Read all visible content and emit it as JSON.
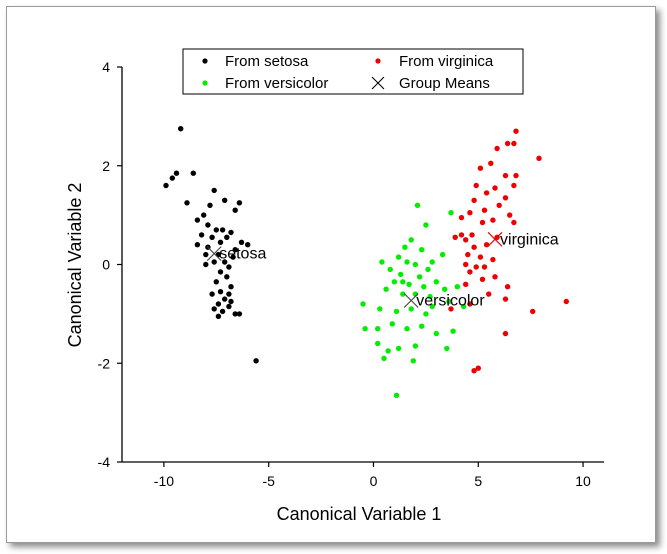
{
  "chart_data": {
    "type": "scatter",
    "title": "",
    "xlabel": "Canonical Variable 1",
    "ylabel": "Canonical Variable 2",
    "xlim": [
      -12,
      11
    ],
    "ylim": [
      -4,
      4
    ],
    "xticks": [
      -10,
      -5,
      0,
      5,
      10
    ],
    "yticks": [
      -4,
      -2,
      0,
      2,
      4
    ],
    "legend_position": "top",
    "series": [
      {
        "name": "From setosa",
        "color": "#000000",
        "marker": "dot",
        "points": [
          [
            -9.2,
            2.75
          ],
          [
            -9.4,
            1.85
          ],
          [
            -8.6,
            1.85
          ],
          [
            -9.9,
            1.6
          ],
          [
            -9.6,
            1.75
          ],
          [
            -8.9,
            1.25
          ],
          [
            -7.6,
            1.5
          ],
          [
            -7.8,
            1.2
          ],
          [
            -8.1,
            1.0
          ],
          [
            -7.1,
            1.3
          ],
          [
            -6.4,
            1.25
          ],
          [
            -6.6,
            1.1
          ],
          [
            -8.4,
            0.9
          ],
          [
            -7.9,
            0.8
          ],
          [
            -7.5,
            0.7
          ],
          [
            -7.2,
            0.7
          ],
          [
            -6.8,
            0.65
          ],
          [
            -8.2,
            0.6
          ],
          [
            -7.7,
            0.55
          ],
          [
            -7.3,
            0.45
          ],
          [
            -6.3,
            0.45
          ],
          [
            -6.0,
            0.4
          ],
          [
            -8.4,
            0.4
          ],
          [
            -7.9,
            0.35
          ],
          [
            -6.6,
            0.3
          ],
          [
            -7.4,
            0.2
          ],
          [
            -8.0,
            0.2
          ],
          [
            -7.6,
            0.05
          ],
          [
            -7.1,
            0.05
          ],
          [
            -6.9,
            -0.05
          ],
          [
            -7.3,
            -0.15
          ],
          [
            -7.0,
            -0.25
          ],
          [
            -7.5,
            -0.35
          ],
          [
            -6.8,
            -0.45
          ],
          [
            -7.3,
            -0.55
          ],
          [
            -6.9,
            -0.6
          ],
          [
            -7.1,
            -0.7
          ],
          [
            -6.8,
            -0.75
          ],
          [
            -7.4,
            -0.8
          ],
          [
            -7.6,
            -0.9
          ],
          [
            -6.9,
            -0.85
          ],
          [
            -7.2,
            -0.95
          ],
          [
            -6.6,
            -1.0
          ],
          [
            -7.4,
            -1.05
          ],
          [
            -6.4,
            -1.0
          ],
          [
            -5.6,
            -1.95
          ],
          [
            -7.7,
            -0.6
          ],
          [
            -6.7,
            0.15
          ],
          [
            -8.0,
            0.0
          ],
          [
            -7.0,
            0.55
          ]
        ]
      },
      {
        "name": "From versicolor",
        "color": "#00ee00",
        "marker": "dot",
        "points": [
          [
            2.1,
            1.2
          ],
          [
            3.7,
            1.05
          ],
          [
            2.5,
            0.8
          ],
          [
            1.8,
            0.5
          ],
          [
            1.5,
            0.35
          ],
          [
            2.3,
            0.3
          ],
          [
            0.4,
            0.05
          ],
          [
            1.2,
            0.15
          ],
          [
            1.6,
            0.05
          ],
          [
            2.0,
            0.0
          ],
          [
            2.8,
            0.05
          ],
          [
            3.3,
            0.2
          ],
          [
            0.8,
            -0.1
          ],
          [
            1.3,
            -0.2
          ],
          [
            2.6,
            -0.1
          ],
          [
            2.2,
            -0.25
          ],
          [
            1.0,
            -0.35
          ],
          [
            1.7,
            -0.4
          ],
          [
            2.4,
            -0.45
          ],
          [
            3.0,
            -0.35
          ],
          [
            0.6,
            -0.5
          ],
          [
            1.4,
            -0.6
          ],
          [
            2.0,
            -0.6
          ],
          [
            2.7,
            -0.65
          ],
          [
            3.4,
            -0.5
          ],
          [
            -0.5,
            -0.8
          ],
          [
            0.3,
            -0.9
          ],
          [
            1.1,
            -0.95
          ],
          [
            1.8,
            -0.9
          ],
          [
            2.5,
            -1.0
          ],
          [
            3.6,
            -0.75
          ],
          [
            4.3,
            -0.85
          ],
          [
            0.9,
            -1.2
          ],
          [
            1.6,
            -1.3
          ],
          [
            2.3,
            -1.25
          ],
          [
            0.2,
            -1.3
          ],
          [
            -0.4,
            -1.3
          ],
          [
            3.0,
            -1.4
          ],
          [
            3.8,
            -1.35
          ],
          [
            0.2,
            -1.6
          ],
          [
            0.7,
            -1.75
          ],
          [
            1.2,
            -1.7
          ],
          [
            2.0,
            -1.65
          ],
          [
            3.5,
            -1.7
          ],
          [
            0.5,
            -1.9
          ],
          [
            1.9,
            -1.95
          ],
          [
            1.1,
            -2.65
          ],
          [
            4.0,
            -0.45
          ],
          [
            2.8,
            -0.85
          ],
          [
            1.4,
            -0.35
          ]
        ]
      },
      {
        "name": "From virginica",
        "color": "#ee0000",
        "marker": "dot",
        "points": [
          [
            6.8,
            2.7
          ],
          [
            6.4,
            2.45
          ],
          [
            6.7,
            2.45
          ],
          [
            5.9,
            2.35
          ],
          [
            7.9,
            2.15
          ],
          [
            5.6,
            2.05
          ],
          [
            5.1,
            1.95
          ],
          [
            6.3,
            1.8
          ],
          [
            6.8,
            1.8
          ],
          [
            6.7,
            1.6
          ],
          [
            4.9,
            1.6
          ],
          [
            5.8,
            1.55
          ],
          [
            5.4,
            1.45
          ],
          [
            6.3,
            1.35
          ],
          [
            4.8,
            1.3
          ],
          [
            6.0,
            1.2
          ],
          [
            5.3,
            1.1
          ],
          [
            4.6,
            1.05
          ],
          [
            6.5,
            1.0
          ],
          [
            5.7,
            0.9
          ],
          [
            4.2,
            0.95
          ],
          [
            5.2,
            0.85
          ],
          [
            6.7,
            0.85
          ],
          [
            4.7,
            0.6
          ],
          [
            4.2,
            0.6
          ],
          [
            5.9,
            0.55
          ],
          [
            4.4,
            0.5
          ],
          [
            3.9,
            0.55
          ],
          [
            5.4,
            0.4
          ],
          [
            4.8,
            0.35
          ],
          [
            4.5,
            0.2
          ],
          [
            5.1,
            0.15
          ],
          [
            5.7,
            0.1
          ],
          [
            4.4,
            0.0
          ],
          [
            4.9,
            -0.05
          ],
          [
            5.3,
            -0.05
          ],
          [
            4.6,
            -0.15
          ],
          [
            5.8,
            -0.25
          ],
          [
            5.2,
            -0.3
          ],
          [
            4.4,
            -0.4
          ],
          [
            6.4,
            -0.45
          ],
          [
            5.5,
            -0.6
          ],
          [
            6.3,
            -0.7
          ],
          [
            4.6,
            -0.8
          ],
          [
            9.2,
            -0.75
          ],
          [
            7.6,
            -0.95
          ],
          [
            6.3,
            -1.4
          ],
          [
            5.0,
            -2.1
          ],
          [
            4.8,
            -2.15
          ],
          [
            3.7,
            -0.9
          ]
        ]
      }
    ],
    "means": [
      {
        "label": "setosa",
        "x": -7.6,
        "y": 0.22
      },
      {
        "label": "versicolor",
        "x": 1.8,
        "y": -0.73
      },
      {
        "label": "virginica",
        "x": 5.8,
        "y": 0.51
      }
    ],
    "means_name": "Group Means",
    "means_color": "#444444",
    "virginica_mean_color": "#ee0000"
  }
}
